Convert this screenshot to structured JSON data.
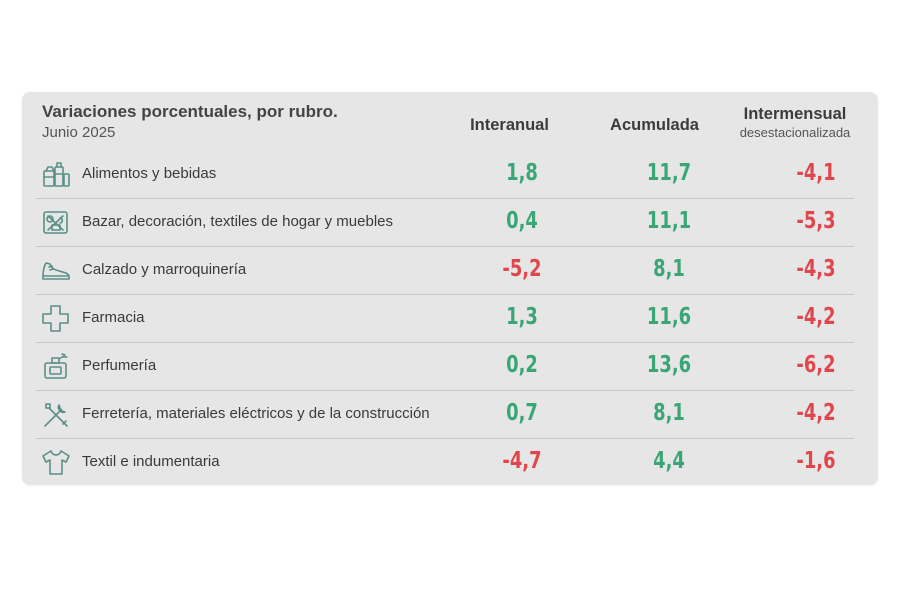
{
  "header": {
    "title": "Variaciones porcentuales, por rubro.",
    "subtitle": "Junio 2025",
    "col1": "Interanual",
    "col2": "Acumulada",
    "col3": "Intermensual",
    "col3_sub": "desestacionalizada"
  },
  "colors": {
    "positive": "#3aa676",
    "negative": "#e0474c",
    "icon": "#5a8f87"
  },
  "chart_data": {
    "type": "table",
    "title": "Variaciones porcentuales, por rubro.",
    "subtitle": "Junio 2025",
    "columns": [
      "Interanual",
      "Acumulada",
      "Intermensual desestacionalizada"
    ],
    "rows": [
      {
        "icon": "grocery-icon",
        "label": "Alimentos y bebidas",
        "values": [
          "1,8",
          "11,7",
          "-4,1"
        ]
      },
      {
        "icon": "home-goods-icon",
        "label": "Bazar, decoración, textiles de hogar y muebles",
        "values": [
          "0,4",
          "11,1",
          "-5,3"
        ]
      },
      {
        "icon": "shoe-icon",
        "label": "Calzado y marroquinería",
        "values": [
          "-5,2",
          "8,1",
          "-4,3"
        ]
      },
      {
        "icon": "pharmacy-cross-icon",
        "label": "Farmacia",
        "values": [
          "1,3",
          "11,6",
          "-4,2"
        ]
      },
      {
        "icon": "perfume-icon",
        "label": "Perfumería",
        "values": [
          "0,2",
          "13,6",
          "-6,2"
        ]
      },
      {
        "icon": "tools-icon",
        "label": "Ferretería, materiales eléctricos y de la construcción",
        "values": [
          "0,7",
          "8,1",
          "-4,2"
        ]
      },
      {
        "icon": "shirt-icon",
        "label": "Textil e indumentaria",
        "values": [
          "-4,7",
          "4,4",
          "-1,6"
        ]
      }
    ]
  }
}
